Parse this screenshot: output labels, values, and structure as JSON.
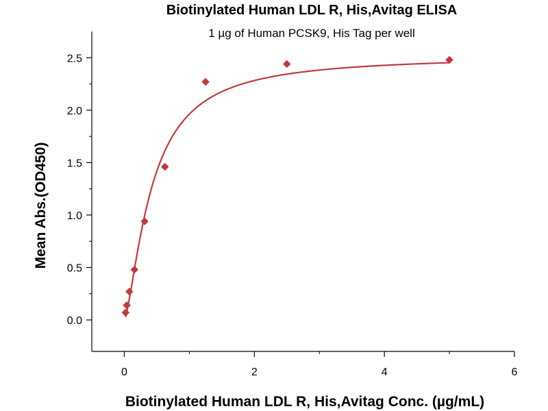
{
  "chart_data": {
    "type": "scatter",
    "title": "Biotinylated Human LDL R, His,Avitag ELISA",
    "subtitle": "1 µg of Human PCSK9, His Tag per well",
    "xlabel": "Biotinylated Human LDL R, His,Avitag Conc. (µg/mL)",
    "ylabel": "Mean Abs.(OD450)",
    "xlim": [
      -0.5,
      6
    ],
    "ylim": [
      -0.3,
      2.75
    ],
    "x_ticks": [
      0,
      2,
      4,
      6
    ],
    "y_ticks": [
      0.0,
      0.5,
      1.0,
      1.5,
      2.0,
      2.5
    ],
    "x_tick_labels": [
      "0",
      "2",
      "4",
      "6"
    ],
    "y_tick_labels": [
      "0.0",
      "0.5",
      "1.0",
      "1.5",
      "2.0",
      "2.5"
    ],
    "grid": false,
    "legend": "none",
    "series": [
      {
        "marker": "diamond",
        "color": "#c0393b",
        "x": [
          0.0195,
          0.039,
          0.078,
          0.156,
          0.3125,
          0.625,
          1.25,
          2.5,
          5.0
        ],
        "y": [
          0.07,
          0.14,
          0.27,
          0.48,
          0.94,
          1.46,
          2.27,
          2.44,
          2.48
        ]
      }
    ],
    "fit_curve": {
      "model": "4PL",
      "color": "#c0393b",
      "bottom": 0.0,
      "top": 2.52,
      "ec50": 0.42,
      "hill": 1.45
    }
  }
}
